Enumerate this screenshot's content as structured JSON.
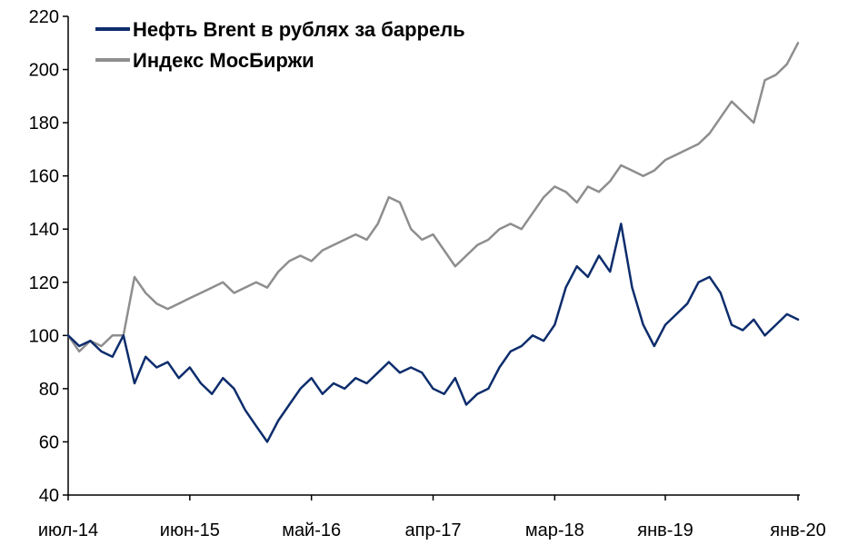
{
  "chart_data": {
    "type": "line",
    "title": "",
    "xlabel": "",
    "ylabel": "",
    "ylim": [
      40,
      220
    ],
    "y_ticks": [
      "40",
      "60",
      "80",
      "100",
      "120",
      "140",
      "160",
      "180",
      "200",
      "220"
    ],
    "x_ticks": [
      "июл-14",
      "июн-15",
      "май-16",
      "апр-17",
      "мар-18",
      "янв-19",
      "янв-20"
    ],
    "x_tick_dates": [
      "2014-07",
      "2015-06",
      "2016-05",
      "2017-04",
      "2018-03",
      "2019-01",
      "2020-01"
    ],
    "grid": false,
    "legend_position": "top-left",
    "series": [
      {
        "name": "Нефть Brent в рублях за баррель",
        "color": "#0d2d6c",
        "x": [
          "2014-07",
          "2014-08",
          "2014-09",
          "2014-10",
          "2014-11",
          "2014-12",
          "2015-01",
          "2015-02",
          "2015-03",
          "2015-04",
          "2015-05",
          "2015-06",
          "2015-07",
          "2015-08",
          "2015-09",
          "2015-10",
          "2015-11",
          "2015-12",
          "2016-01",
          "2016-02",
          "2016-03",
          "2016-04",
          "2016-05",
          "2016-06",
          "2016-07",
          "2016-08",
          "2016-09",
          "2016-10",
          "2016-11",
          "2016-12",
          "2017-01",
          "2017-02",
          "2017-03",
          "2017-04",
          "2017-05",
          "2017-06",
          "2017-07",
          "2017-08",
          "2017-09",
          "2017-10",
          "2017-11",
          "2017-12",
          "2018-01",
          "2018-02",
          "2018-03",
          "2018-04",
          "2018-05",
          "2018-06",
          "2018-07",
          "2018-08",
          "2018-09",
          "2018-10",
          "2018-11",
          "2018-12",
          "2019-01",
          "2019-02",
          "2019-03",
          "2019-04",
          "2019-05",
          "2019-06",
          "2019-07",
          "2019-08",
          "2019-09",
          "2019-10",
          "2019-11",
          "2019-12",
          "2020-01"
        ],
        "values": [
          100,
          96,
          98,
          94,
          92,
          100,
          82,
          92,
          88,
          90,
          84,
          88,
          82,
          78,
          84,
          80,
          72,
          66,
          60,
          68,
          74,
          80,
          84,
          78,
          82,
          80,
          84,
          82,
          86,
          90,
          86,
          88,
          86,
          80,
          78,
          84,
          74,
          78,
          80,
          88,
          94,
          96,
          100,
          98,
          104,
          118,
          126,
          122,
          130,
          124,
          142,
          118,
          104,
          96,
          104,
          108,
          112,
          120,
          122,
          116,
          104,
          102,
          106,
          100,
          104,
          108,
          106
        ]
      },
      {
        "name": "Индекс МосБиржи",
        "color": "#8e8e8e",
        "x": [
          "2014-07",
          "2014-08",
          "2014-09",
          "2014-10",
          "2014-11",
          "2014-12",
          "2015-01",
          "2015-02",
          "2015-03",
          "2015-04",
          "2015-05",
          "2015-06",
          "2015-07",
          "2015-08",
          "2015-09",
          "2015-10",
          "2015-11",
          "2015-12",
          "2016-01",
          "2016-02",
          "2016-03",
          "2016-04",
          "2016-05",
          "2016-06",
          "2016-07",
          "2016-08",
          "2016-09",
          "2016-10",
          "2016-11",
          "2016-12",
          "2017-01",
          "2017-02",
          "2017-03",
          "2017-04",
          "2017-05",
          "2017-06",
          "2017-07",
          "2017-08",
          "2017-09",
          "2017-10",
          "2017-11",
          "2017-12",
          "2018-01",
          "2018-02",
          "2018-03",
          "2018-04",
          "2018-05",
          "2018-06",
          "2018-07",
          "2018-08",
          "2018-09",
          "2018-10",
          "2018-11",
          "2018-12",
          "2019-01",
          "2019-02",
          "2019-03",
          "2019-04",
          "2019-05",
          "2019-06",
          "2019-07",
          "2019-08",
          "2019-09",
          "2019-10",
          "2019-11",
          "2019-12",
          "2020-01"
        ],
        "values": [
          100,
          94,
          98,
          96,
          100,
          100,
          122,
          116,
          112,
          110,
          112,
          114,
          116,
          118,
          120,
          116,
          118,
          120,
          118,
          124,
          128,
          130,
          128,
          132,
          134,
          136,
          138,
          136,
          142,
          152,
          150,
          140,
          136,
          138,
          132,
          126,
          130,
          134,
          136,
          140,
          142,
          140,
          146,
          152,
          156,
          154,
          150,
          156,
          154,
          158,
          164,
          162,
          160,
          162,
          166,
          168,
          170,
          172,
          176,
          182,
          188,
          184,
          180,
          196,
          198,
          202,
          210
        ]
      }
    ]
  }
}
